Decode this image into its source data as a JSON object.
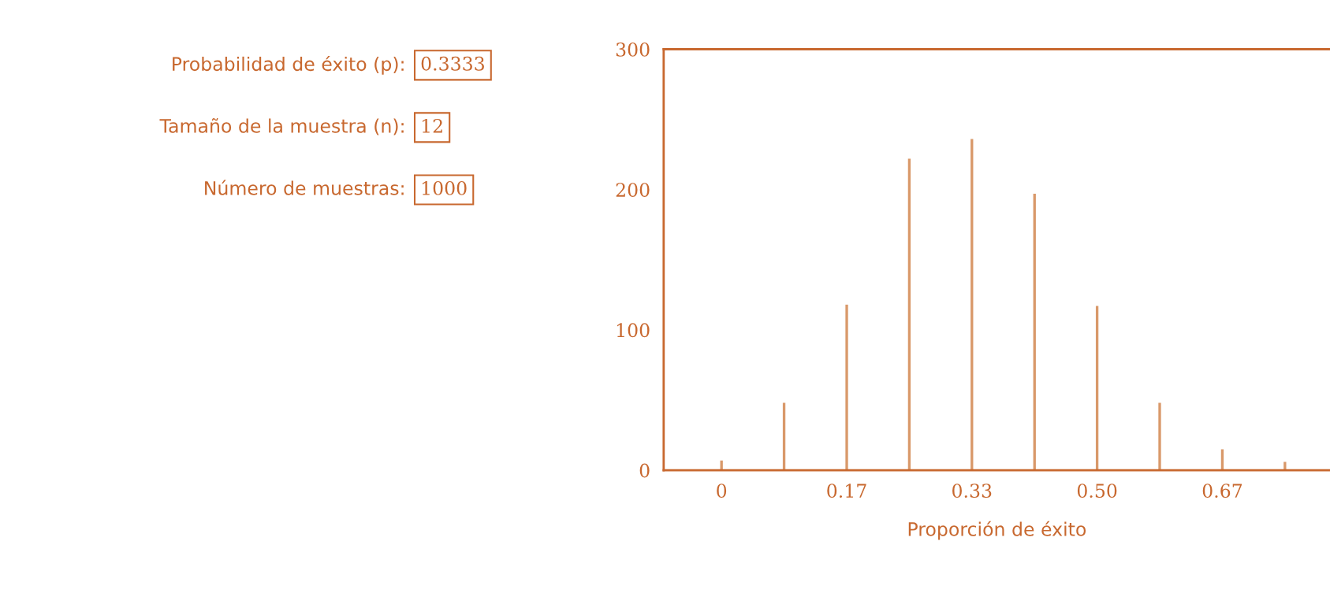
{
  "chart_data": {
    "type": "bar",
    "xlabel": "Proporción de éxito",
    "x": [
      0,
      0.0833,
      0.1667,
      0.25,
      0.3333,
      0.4167,
      0.5,
      0.5833,
      0.6667,
      0.75
    ],
    "values": [
      7,
      48,
      118,
      222,
      236,
      197,
      117,
      48,
      15,
      6
    ],
    "color": "#d9996a",
    "xlim": [
      -0.077,
      0.81
    ],
    "xticks": [
      0,
      {
        "value": 0.1667,
        "label": "0.17"
      },
      {
        "value": 0.3333,
        "label": "0.33"
      },
      {
        "value": 0.5,
        "label": "0.50"
      },
      {
        "value": 0.6667,
        "label": "0.67"
      }
    ],
    "ylim": [
      0,
      300
    ],
    "yticks": [
      0,
      100,
      200,
      300
    ],
    "grid": false,
    "annotations": [
      "Probabilidad de éxito (p):",
      "0.3333",
      "Tamaño de la muestra (n):",
      "12",
      "Número de muestras:",
      "1000"
    ]
  }
}
